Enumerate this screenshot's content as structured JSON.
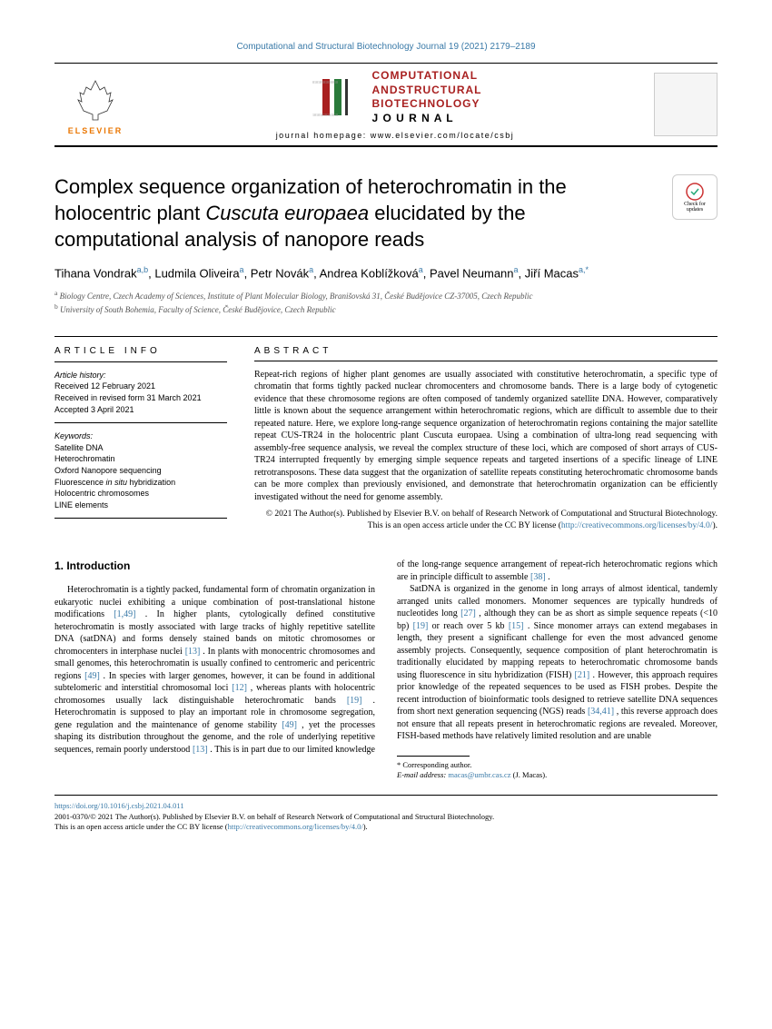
{
  "citation": "Computational and Structural Biotechnology Journal 19 (2021) 2179–2189",
  "publisher": {
    "label": "ELSEVIER"
  },
  "journal": {
    "line1": "COMPUTATIONAL",
    "line2": "ANDSTRUCTURAL",
    "line3": "BIOTECHNOLOGY",
    "line4": "J O U R N A L",
    "homepage": "journal homepage: www.elsevier.com/locate/csbj"
  },
  "check_updates": "Check for updates",
  "title": {
    "pre": "Complex sequence organization of heterochromatin in the holocentric plant ",
    "italic": "Cuscuta europaea",
    "post": " elucidated by the computational analysis of nanopore reads"
  },
  "authors": [
    {
      "name": "Tihana Vondrak",
      "sup": "a,b"
    },
    {
      "name": "Ludmila Oliveira",
      "sup": "a"
    },
    {
      "name": "Petr Novák",
      "sup": "a"
    },
    {
      "name": "Andrea Koblížková",
      "sup": "a"
    },
    {
      "name": "Pavel Neumann",
      "sup": "a"
    },
    {
      "name": "Jiří Macas",
      "sup": "a,*"
    }
  ],
  "affiliations": [
    {
      "sup": "a",
      "text": " Biology Centre, Czech Academy of Sciences, Institute of Plant Molecular Biology, Branišovská 31, České Budějovice CZ-37005, Czech Republic"
    },
    {
      "sup": "b",
      "text": " University of South Bohemia, Faculty of Science, České Budějovice, Czech Republic"
    }
  ],
  "info": {
    "heading": "ARTICLE INFO",
    "history_label": "Article history:",
    "history": [
      "Received 12 February 2021",
      "Received in revised form 31 March 2021",
      "Accepted 3 April 2021"
    ],
    "keywords_label": "Keywords:",
    "keywords": [
      "Satellite DNA",
      "Heterochromatin",
      "Oxford Nanopore sequencing",
      "Fluorescence in situ hybridization",
      "Holocentric chromosomes",
      "LINE elements"
    ]
  },
  "abstract": {
    "heading": "ABSTRACT",
    "text": "Repeat-rich regions of higher plant genomes are usually associated with constitutive heterochromatin, a specific type of chromatin that forms tightly packed nuclear chromocenters and chromosome bands. There is a large body of cytogenetic evidence that these chromosome regions are often composed of tandemly organized satellite DNA. However, comparatively little is known about the sequence arrangement within heterochromatic regions, which are difficult to assemble due to their repeated nature. Here, we explore long-range sequence organization of heterochromatin regions containing the major satellite repeat CUS-TR24 in the holocentric plant Cuscuta europaea. Using a combination of ultra-long read sequencing with assembly-free sequence analysis, we reveal the complex structure of these loci, which are composed of short arrays of CUS-TR24 interrupted frequently by emerging simple sequence repeats and targeted insertions of a specific lineage of LINE retrotransposons. These data suggest that the organization of satellite repeats constituting heterochromatic chromosome bands can be more complex than previously envisioned, and demonstrate that heterochromatin organization can be efficiently investigated without the need for genome assembly.",
    "copyright": "© 2021 The Author(s). Published by Elsevier B.V. on behalf of Research Network of Computational and Structural Biotechnology. This is an open access article under the CC BY license (",
    "license_url": "http://creativecommons.org/licenses/by/4.0/",
    "close_paren": ")."
  },
  "section1": {
    "heading": "1. Introduction",
    "para1_a": "Heterochromatin is a tightly packed, fundamental form of chromatin organization in eukaryotic nuclei exhibiting a unique combination of post-translational histone modifications ",
    "ref1": "[1,49]",
    "para1_b": " . In higher plants, cytologically defined constitutive heterochromatin is mostly associated with large tracks of highly repetitive satellite DNA (satDNA) and forms densely stained bands on mitotic chromosomes or chromocenters in interphase nuclei ",
    "ref2": "[13]",
    "para1_c": " . In plants with monocentric chromosomes and small genomes, this heterochromatin is usually confined to centromeric and pericentric regions ",
    "ref3": "[49]",
    "para1_d": " . In species with larger genomes, however, it can be found in additional subtelomeric and interstitial chromosomal loci ",
    "ref4": "[12]",
    "para1_e": " , whereas plants with holocentric chromosomes usually lack distinguishable heterochromatic bands ",
    "ref5": "[19]",
    "para1_f": " . Heterochromatin is supposed to play an important role in chromosome segregation, gene regulation and the maintenance of genome stability ",
    "ref6": "[49]",
    "para1_g": " , yet the processes shaping its distribution throughout the genome, and the role of underlying repetitive sequences, remain poorly understood ",
    "ref7": "[13]",
    "para1_h": " . This is in part due to our limited knowledge of the long-range sequence arrangement of repeat-rich heterochromatic regions which are in principle difficult to assemble ",
    "ref8": "[38]",
    "para1_i": " .",
    "para2_a": "SatDNA is organized in the genome in long arrays of almost identical, tandemly arranged units called monomers. Monomer sequences are typically hundreds of nucleotides long ",
    "ref9": "[27]",
    "para2_b": " , although they can be as short as simple sequence repeats (<10 bp) ",
    "ref10": "[19]",
    "para2_c": "  or reach over 5 kb ",
    "ref11": "[15]",
    "para2_d": " . Since monomer arrays can extend megabases in length, they present a significant challenge for even the most advanced genome assembly projects. Consequently, sequence composition of plant heterochromatin is traditionally elucidated by mapping repeats to heterochromatic chromosome bands using fluorescence in situ hybridization (FISH) ",
    "ref12": "[21]",
    "para2_e": " . However, this approach requires prior knowledge of the repeated sequences to be used as FISH probes. Despite the recent introduction of bioinformatic tools designed to retrieve satellite DNA sequences from short next generation sequencing (NGS) reads ",
    "ref13": "[34,41]",
    "para2_f": " , this reverse approach does not ensure that all repeats present in heterochromatic regions are revealed. Moreover, FISH-based methods have relatively limited resolution and are unable"
  },
  "footnotes": {
    "corr": "* Corresponding author.",
    "email_label": "E-mail address: ",
    "email": "macas@umbr.cas.cz",
    "email_name": " (J. Macas)."
  },
  "footer": {
    "doi": "https://doi.org/10.1016/j.csbj.2021.04.011",
    "line2": "2001-0370/© 2021 The Author(s). Published by Elsevier B.V. on behalf of Research Network of Computational and Structural Biotechnology.",
    "line3a": "This is an open access article under the CC BY license (",
    "line3b": "http://creativecommons.org/licenses/by/4.0/",
    "line3c": ")."
  }
}
